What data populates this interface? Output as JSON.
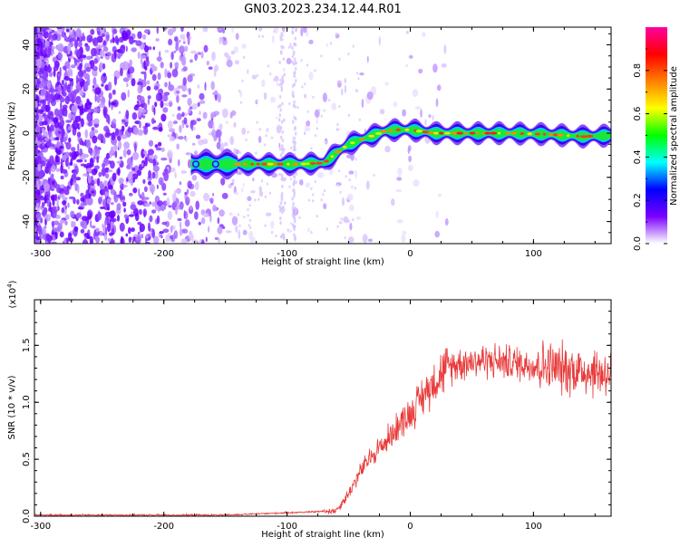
{
  "title": "GN03.2023.234.12.44.R01",
  "chart_data": [
    {
      "type": "heatmap",
      "xlabel": "Height of straight line (km)",
      "ylabel": "Frequency (Hz)",
      "xlim": [
        -305,
        163
      ],
      "ylim": [
        -50,
        48
      ],
      "xticks": [
        -300,
        -200,
        -100,
        0,
        100
      ],
      "yticks": [
        -40,
        -20,
        0,
        20,
        40
      ],
      "xtick_labels": [
        "-300",
        "-200",
        "-100",
        "0",
        "100"
      ],
      "ytick_labels": [
        "-40",
        "-20",
        "0",
        "20",
        "40"
      ],
      "ridge": {
        "x": [
          -178,
          -150,
          -120,
          -90,
          -70,
          -60,
          -50,
          -40,
          -30,
          -20,
          -10,
          0,
          20,
          50,
          80,
          110,
          140,
          163
        ],
        "y": [
          -14,
          -14,
          -14,
          -14,
          -13.5,
          -9,
          -5,
          -3,
          -1,
          1,
          1.5,
          1.5,
          0,
          0,
          0,
          -0.5,
          -1.5,
          -1
        ]
      },
      "colorbar": {
        "label": "Normalized spectral amplitude",
        "range": [
          0,
          1
        ],
        "ticks": [
          0.0,
          0.2,
          0.4,
          0.6,
          0.8
        ],
        "tick_labels": [
          "0.0",
          "0.2",
          "0.4",
          "0.6",
          "0.8"
        ],
        "colors": [
          "#ffffff",
          "#7a00ff",
          "#0000ff",
          "#00ffff",
          "#00ff00",
          "#ffff00",
          "#ff8000",
          "#ff0000",
          "#ff00a0"
        ]
      }
    },
    {
      "type": "line",
      "xlabel": "Height of straight line (km)",
      "ylabel": "SNR (10 * v/v)",
      "y_multiplier": "(x10",
      "y_multiplier_exp": "4",
      "y_multiplier_close": ")",
      "xlim": [
        -305,
        163
      ],
      "ylim": [
        0,
        1.9
      ],
      "xticks": [
        -300,
        -200,
        -100,
        0,
        100
      ],
      "yticks": [
        0.0,
        0.5,
        1.0,
        1.5
      ],
      "xtick_labels": [
        "-300",
        "-200",
        "-100",
        "0",
        "100"
      ],
      "ytick_labels": [
        "0.0",
        "0.5",
        "1.0",
        "1.5"
      ],
      "color": "#e83a3a",
      "trend": {
        "x": [
          -305,
          -150,
          -100,
          -75,
          -60,
          -50,
          -40,
          -30,
          -20,
          -10,
          0,
          10,
          20,
          30,
          40,
          60,
          80,
          100,
          120,
          140,
          163
        ],
        "y": [
          0.01,
          0.01,
          0.03,
          0.04,
          0.05,
          0.2,
          0.4,
          0.55,
          0.65,
          0.8,
          0.9,
          1.05,
          1.2,
          1.3,
          1.35,
          1.37,
          1.35,
          1.33,
          1.3,
          1.28,
          1.25
        ]
      }
    }
  ]
}
